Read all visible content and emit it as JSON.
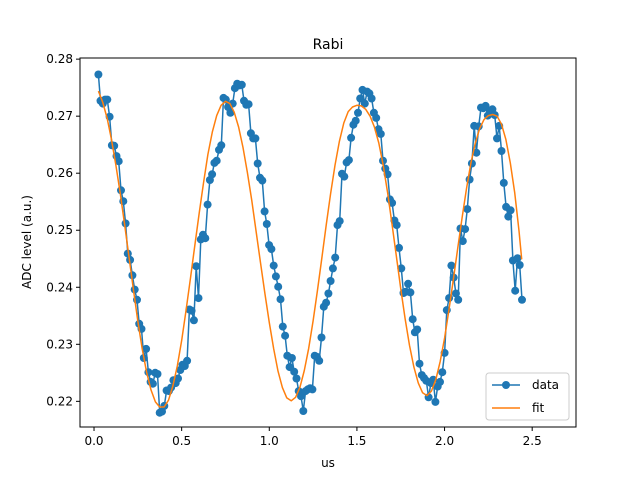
{
  "chart_data": {
    "type": "line",
    "title": "Rabi",
    "xlabel": "us",
    "ylabel": "ADC level (a.u.)",
    "xlim": [
      -0.08,
      2.75
    ],
    "ylim": [
      0.2155,
      0.2802
    ],
    "xticks": [
      0.0,
      0.5,
      1.0,
      1.5,
      2.0,
      2.5
    ],
    "xtick_labels": [
      "0.0",
      "0.5",
      "1.0",
      "1.5",
      "2.0",
      "2.5"
    ],
    "yticks": [
      0.22,
      0.23,
      0.24,
      0.25,
      0.26,
      0.27,
      0.28
    ],
    "ytick_labels": [
      "0.22",
      "0.23",
      "0.24",
      "0.25",
      "0.26",
      "0.27",
      "0.28"
    ],
    "grid": false,
    "legend_position": "bottom-right",
    "series": [
      {
        "name": "data",
        "style": "line-marker",
        "color": "#1f77b4",
        "points": [
          [
            0.025,
            0.2773
          ],
          [
            0.037,
            0.2727
          ],
          [
            0.05,
            0.2722
          ],
          [
            0.063,
            0.2729
          ],
          [
            0.076,
            0.2729
          ],
          [
            0.089,
            0.2699
          ],
          [
            0.102,
            0.2649
          ],
          [
            0.115,
            0.2648
          ],
          [
            0.128,
            0.263
          ],
          [
            0.141,
            0.2621
          ],
          [
            0.154,
            0.257
          ],
          [
            0.167,
            0.2551
          ],
          [
            0.18,
            0.2512
          ],
          [
            0.193,
            0.2459
          ],
          [
            0.206,
            0.2448
          ],
          [
            0.219,
            0.2421
          ],
          [
            0.232,
            0.2396
          ],
          [
            0.245,
            0.2378
          ],
          [
            0.258,
            0.2336
          ],
          [
            0.271,
            0.2327
          ],
          [
            0.284,
            0.2276
          ],
          [
            0.297,
            0.2292
          ],
          [
            0.31,
            0.2251
          ],
          [
            0.323,
            0.2234
          ],
          [
            0.336,
            0.2231
          ],
          [
            0.349,
            0.225
          ],
          [
            0.362,
            0.2248
          ],
          [
            0.375,
            0.218
          ],
          [
            0.388,
            0.2182
          ],
          [
            0.401,
            0.2192
          ],
          [
            0.414,
            0.2219
          ],
          [
            0.427,
            0.2218
          ],
          [
            0.44,
            0.2224
          ],
          [
            0.453,
            0.2237
          ],
          [
            0.466,
            0.2232
          ],
          [
            0.479,
            0.224
          ],
          [
            0.492,
            0.2255
          ],
          [
            0.505,
            0.2264
          ],
          [
            0.518,
            0.2262
          ],
          [
            0.531,
            0.2271
          ],
          [
            0.544,
            0.2361
          ],
          [
            0.557,
            0.2359
          ],
          [
            0.57,
            0.2342
          ],
          [
            0.583,
            0.2437
          ],
          [
            0.596,
            0.2381
          ],
          [
            0.609,
            0.2484
          ],
          [
            0.622,
            0.2492
          ],
          [
            0.635,
            0.2486
          ],
          [
            0.648,
            0.2545
          ],
          [
            0.661,
            0.2588
          ],
          [
            0.674,
            0.2598
          ],
          [
            0.687,
            0.2618
          ],
          [
            0.7,
            0.2622
          ],
          [
            0.713,
            0.2641
          ],
          [
            0.726,
            0.2649
          ],
          [
            0.739,
            0.2732
          ],
          [
            0.752,
            0.2729
          ],
          [
            0.765,
            0.2716
          ],
          [
            0.778,
            0.2706
          ],
          [
            0.791,
            0.2722
          ],
          [
            0.804,
            0.2749
          ],
          [
            0.817,
            0.2757
          ],
          [
            0.83,
            0.2754
          ],
          [
            0.843,
            0.2755
          ],
          [
            0.856,
            0.2727
          ],
          [
            0.869,
            0.272
          ],
          [
            0.882,
            0.2721
          ],
          [
            0.895,
            0.267
          ],
          [
            0.908,
            0.2661
          ],
          [
            0.921,
            0.2661
          ],
          [
            0.934,
            0.2617
          ],
          [
            0.947,
            0.2592
          ],
          [
            0.96,
            0.2587
          ],
          [
            0.973,
            0.2533
          ],
          [
            0.986,
            0.2511
          ],
          [
            0.999,
            0.2474
          ],
          [
            1.012,
            0.2467
          ],
          [
            1.025,
            0.2438
          ],
          [
            1.038,
            0.2419
          ],
          [
            1.051,
            0.2401
          ],
          [
            1.064,
            0.2379
          ],
          [
            1.077,
            0.2331
          ],
          [
            1.09,
            0.2315
          ],
          [
            1.103,
            0.228
          ],
          [
            1.116,
            0.226
          ],
          [
            1.129,
            0.2276
          ],
          [
            1.142,
            0.2252
          ],
          [
            1.155,
            0.224
          ],
          [
            1.168,
            0.2218
          ],
          [
            1.181,
            0.2209
          ],
          [
            1.194,
            0.2183
          ],
          [
            1.207,
            0.2218
          ],
          [
            1.22,
            0.2221
          ],
          [
            1.233,
            0.2223
          ],
          [
            1.246,
            0.2221
          ],
          [
            1.259,
            0.228
          ],
          [
            1.272,
            0.2278
          ],
          [
            1.285,
            0.2271
          ],
          [
            1.298,
            0.2312
          ],
          [
            1.311,
            0.2366
          ],
          [
            1.324,
            0.2373
          ],
          [
            1.337,
            0.2389
          ],
          [
            1.35,
            0.2411
          ],
          [
            1.363,
            0.2433
          ],
          [
            1.376,
            0.2452
          ],
          [
            1.389,
            0.2509
          ],
          [
            1.402,
            0.2516
          ],
          [
            1.415,
            0.2599
          ],
          [
            1.428,
            0.2594
          ],
          [
            1.441,
            0.2619
          ],
          [
            1.454,
            0.2623
          ],
          [
            1.467,
            0.2662
          ],
          [
            1.48,
            0.2685
          ],
          [
            1.493,
            0.2692
          ],
          [
            1.506,
            0.2706
          ],
          [
            1.519,
            0.2731
          ],
          [
            1.532,
            0.2746
          ],
          [
            1.545,
            0.2722
          ],
          [
            1.558,
            0.2743
          ],
          [
            1.571,
            0.274
          ],
          [
            1.584,
            0.2731
          ],
          [
            1.597,
            0.2706
          ],
          [
            1.61,
            0.2697
          ],
          [
            1.623,
            0.2677
          ],
          [
            1.636,
            0.2669
          ],
          [
            1.649,
            0.2622
          ],
          [
            1.662,
            0.2608
          ],
          [
            1.675,
            0.2598
          ],
          [
            1.688,
            0.2554
          ],
          [
            1.701,
            0.2548
          ],
          [
            1.714,
            0.2517
          ],
          [
            1.727,
            0.2509
          ],
          [
            1.74,
            0.2469
          ],
          [
            1.753,
            0.2433
          ],
          [
            1.766,
            0.239
          ],
          [
            1.779,
            0.2392
          ],
          [
            1.792,
            0.2406
          ],
          [
            1.805,
            0.2391
          ],
          [
            1.818,
            0.2344
          ],
          [
            1.831,
            0.2321
          ],
          [
            1.844,
            0.2326
          ],
          [
            1.857,
            0.2266
          ],
          [
            1.87,
            0.2246
          ],
          [
            1.883,
            0.2241
          ],
          [
            1.896,
            0.2236
          ],
          [
            1.909,
            0.2207
          ],
          [
            1.922,
            0.2232
          ],
          [
            1.935,
            0.2238
          ],
          [
            1.948,
            0.2199
          ],
          [
            1.961,
            0.2226
          ],
          [
            1.974,
            0.2234
          ],
          [
            1.987,
            0.2251
          ],
          [
            2.0,
            0.2285
          ],
          [
            2.013,
            0.236
          ],
          [
            2.026,
            0.2381
          ],
          [
            2.039,
            0.2438
          ],
          [
            2.052,
            0.2417
          ],
          [
            2.065,
            0.2389
          ],
          [
            2.078,
            0.2378
          ],
          [
            2.091,
            0.2503
          ],
          [
            2.104,
            0.2481
          ],
          [
            2.117,
            0.2502
          ],
          [
            2.13,
            0.2537
          ],
          [
            2.143,
            0.2589
          ],
          [
            2.156,
            0.2617
          ],
          [
            2.169,
            0.2683
          ],
          [
            2.182,
            0.2636
          ],
          [
            2.195,
            0.2682
          ],
          [
            2.208,
            0.2715
          ],
          [
            2.221,
            0.2714
          ],
          [
            2.234,
            0.2718
          ],
          [
            2.247,
            0.2701
          ],
          [
            2.26,
            0.2708
          ],
          [
            2.273,
            0.2712
          ],
          [
            2.286,
            0.2702
          ],
          [
            2.299,
            0.2661
          ],
          [
            2.312,
            0.2683
          ],
          [
            2.325,
            0.2639
          ],
          [
            2.338,
            0.2583
          ],
          [
            2.351,
            0.2541
          ],
          [
            2.364,
            0.2524
          ],
          [
            2.377,
            0.2535
          ],
          [
            2.39,
            0.2447
          ],
          [
            2.403,
            0.2394
          ],
          [
            2.416,
            0.2451
          ],
          [
            2.429,
            0.2439
          ],
          [
            2.442,
            0.2378
          ]
        ]
      },
      {
        "name": "fit",
        "style": "line",
        "color": "#ff7f0e",
        "points": [
          [
            0.025,
            0.2744
          ],
          [
            0.05,
            0.2724
          ],
          [
            0.075,
            0.2696
          ],
          [
            0.1,
            0.2659
          ],
          [
            0.125,
            0.2614
          ],
          [
            0.15,
            0.2564
          ],
          [
            0.175,
            0.2509
          ],
          [
            0.2,
            0.2452
          ],
          [
            0.225,
            0.2395
          ],
          [
            0.25,
            0.2341
          ],
          [
            0.275,
            0.2292
          ],
          [
            0.3,
            0.2251
          ],
          [
            0.325,
            0.222
          ],
          [
            0.35,
            0.2199
          ],
          [
            0.375,
            0.219
          ],
          [
            0.4,
            0.219
          ],
          [
            0.425,
            0.2202
          ],
          [
            0.45,
            0.2227
          ],
          [
            0.475,
            0.2262
          ],
          [
            0.5,
            0.2307
          ],
          [
            0.525,
            0.2359
          ],
          [
            0.55,
            0.2415
          ],
          [
            0.575,
            0.2473
          ],
          [
            0.6,
            0.253
          ],
          [
            0.625,
            0.2584
          ],
          [
            0.65,
            0.2633
          ],
          [
            0.675,
            0.2672
          ],
          [
            0.7,
            0.2701
          ],
          [
            0.725,
            0.2719
          ],
          [
            0.75,
            0.2726
          ],
          [
            0.775,
            0.2722
          ],
          [
            0.8,
            0.2707
          ],
          [
            0.825,
            0.2681
          ],
          [
            0.85,
            0.2645
          ],
          [
            0.875,
            0.2601
          ],
          [
            0.9,
            0.2552
          ],
          [
            0.925,
            0.2498
          ],
          [
            0.95,
            0.2443
          ],
          [
            0.975,
            0.2389
          ],
          [
            1.0,
            0.2338
          ],
          [
            1.025,
            0.2292
          ],
          [
            1.05,
            0.2253
          ],
          [
            1.075,
            0.2224
          ],
          [
            1.1,
            0.2206
          ],
          [
            1.125,
            0.2201
          ],
          [
            1.15,
            0.2207
          ],
          [
            1.175,
            0.2225
          ],
          [
            1.2,
            0.2254
          ],
          [
            1.225,
            0.2293
          ],
          [
            1.25,
            0.2341
          ],
          [
            1.275,
            0.2395
          ],
          [
            1.3,
            0.2452
          ],
          [
            1.325,
            0.2509
          ],
          [
            1.35,
            0.2564
          ],
          [
            1.375,
            0.2614
          ],
          [
            1.4,
            0.2656
          ],
          [
            1.425,
            0.2688
          ],
          [
            1.45,
            0.2708
          ],
          [
            1.475,
            0.2716
          ],
          [
            1.5,
            0.2719
          ],
          [
            1.525,
            0.2718
          ],
          [
            1.55,
            0.2712
          ],
          [
            1.575,
            0.27
          ],
          [
            1.6,
            0.2681
          ],
          [
            1.625,
            0.2653
          ],
          [
            1.65,
            0.2614
          ],
          [
            1.675,
            0.2566
          ],
          [
            1.7,
            0.2511
          ],
          [
            1.725,
            0.2454
          ],
          [
            1.75,
            0.2398
          ],
          [
            1.775,
            0.2345
          ],
          [
            1.8,
            0.2298
          ],
          [
            1.825,
            0.226
          ],
          [
            1.85,
            0.2232
          ],
          [
            1.875,
            0.2215
          ],
          [
            1.9,
            0.221
          ],
          [
            1.925,
            0.2218
          ],
          [
            1.95,
            0.2238
          ],
          [
            1.975,
            0.227
          ],
          [
            2.0,
            0.2311
          ],
          [
            2.025,
            0.236
          ],
          [
            2.05,
            0.2413
          ],
          [
            2.075,
            0.2468
          ],
          [
            2.1,
            0.2522
          ],
          [
            2.125,
            0.2573
          ],
          [
            2.15,
            0.2617
          ],
          [
            2.175,
            0.2652
          ],
          [
            2.2,
            0.2678
          ],
          [
            2.225,
            0.2694
          ],
          [
            2.25,
            0.2701
          ],
          [
            2.275,
            0.2703
          ],
          [
            2.3,
            0.27
          ],
          [
            2.325,
            0.2686
          ],
          [
            2.35,
            0.2659
          ],
          [
            2.375,
            0.2618
          ],
          [
            2.4,
            0.2566
          ],
          [
            2.425,
            0.2499
          ],
          [
            2.44,
            0.2449
          ]
        ]
      }
    ]
  }
}
